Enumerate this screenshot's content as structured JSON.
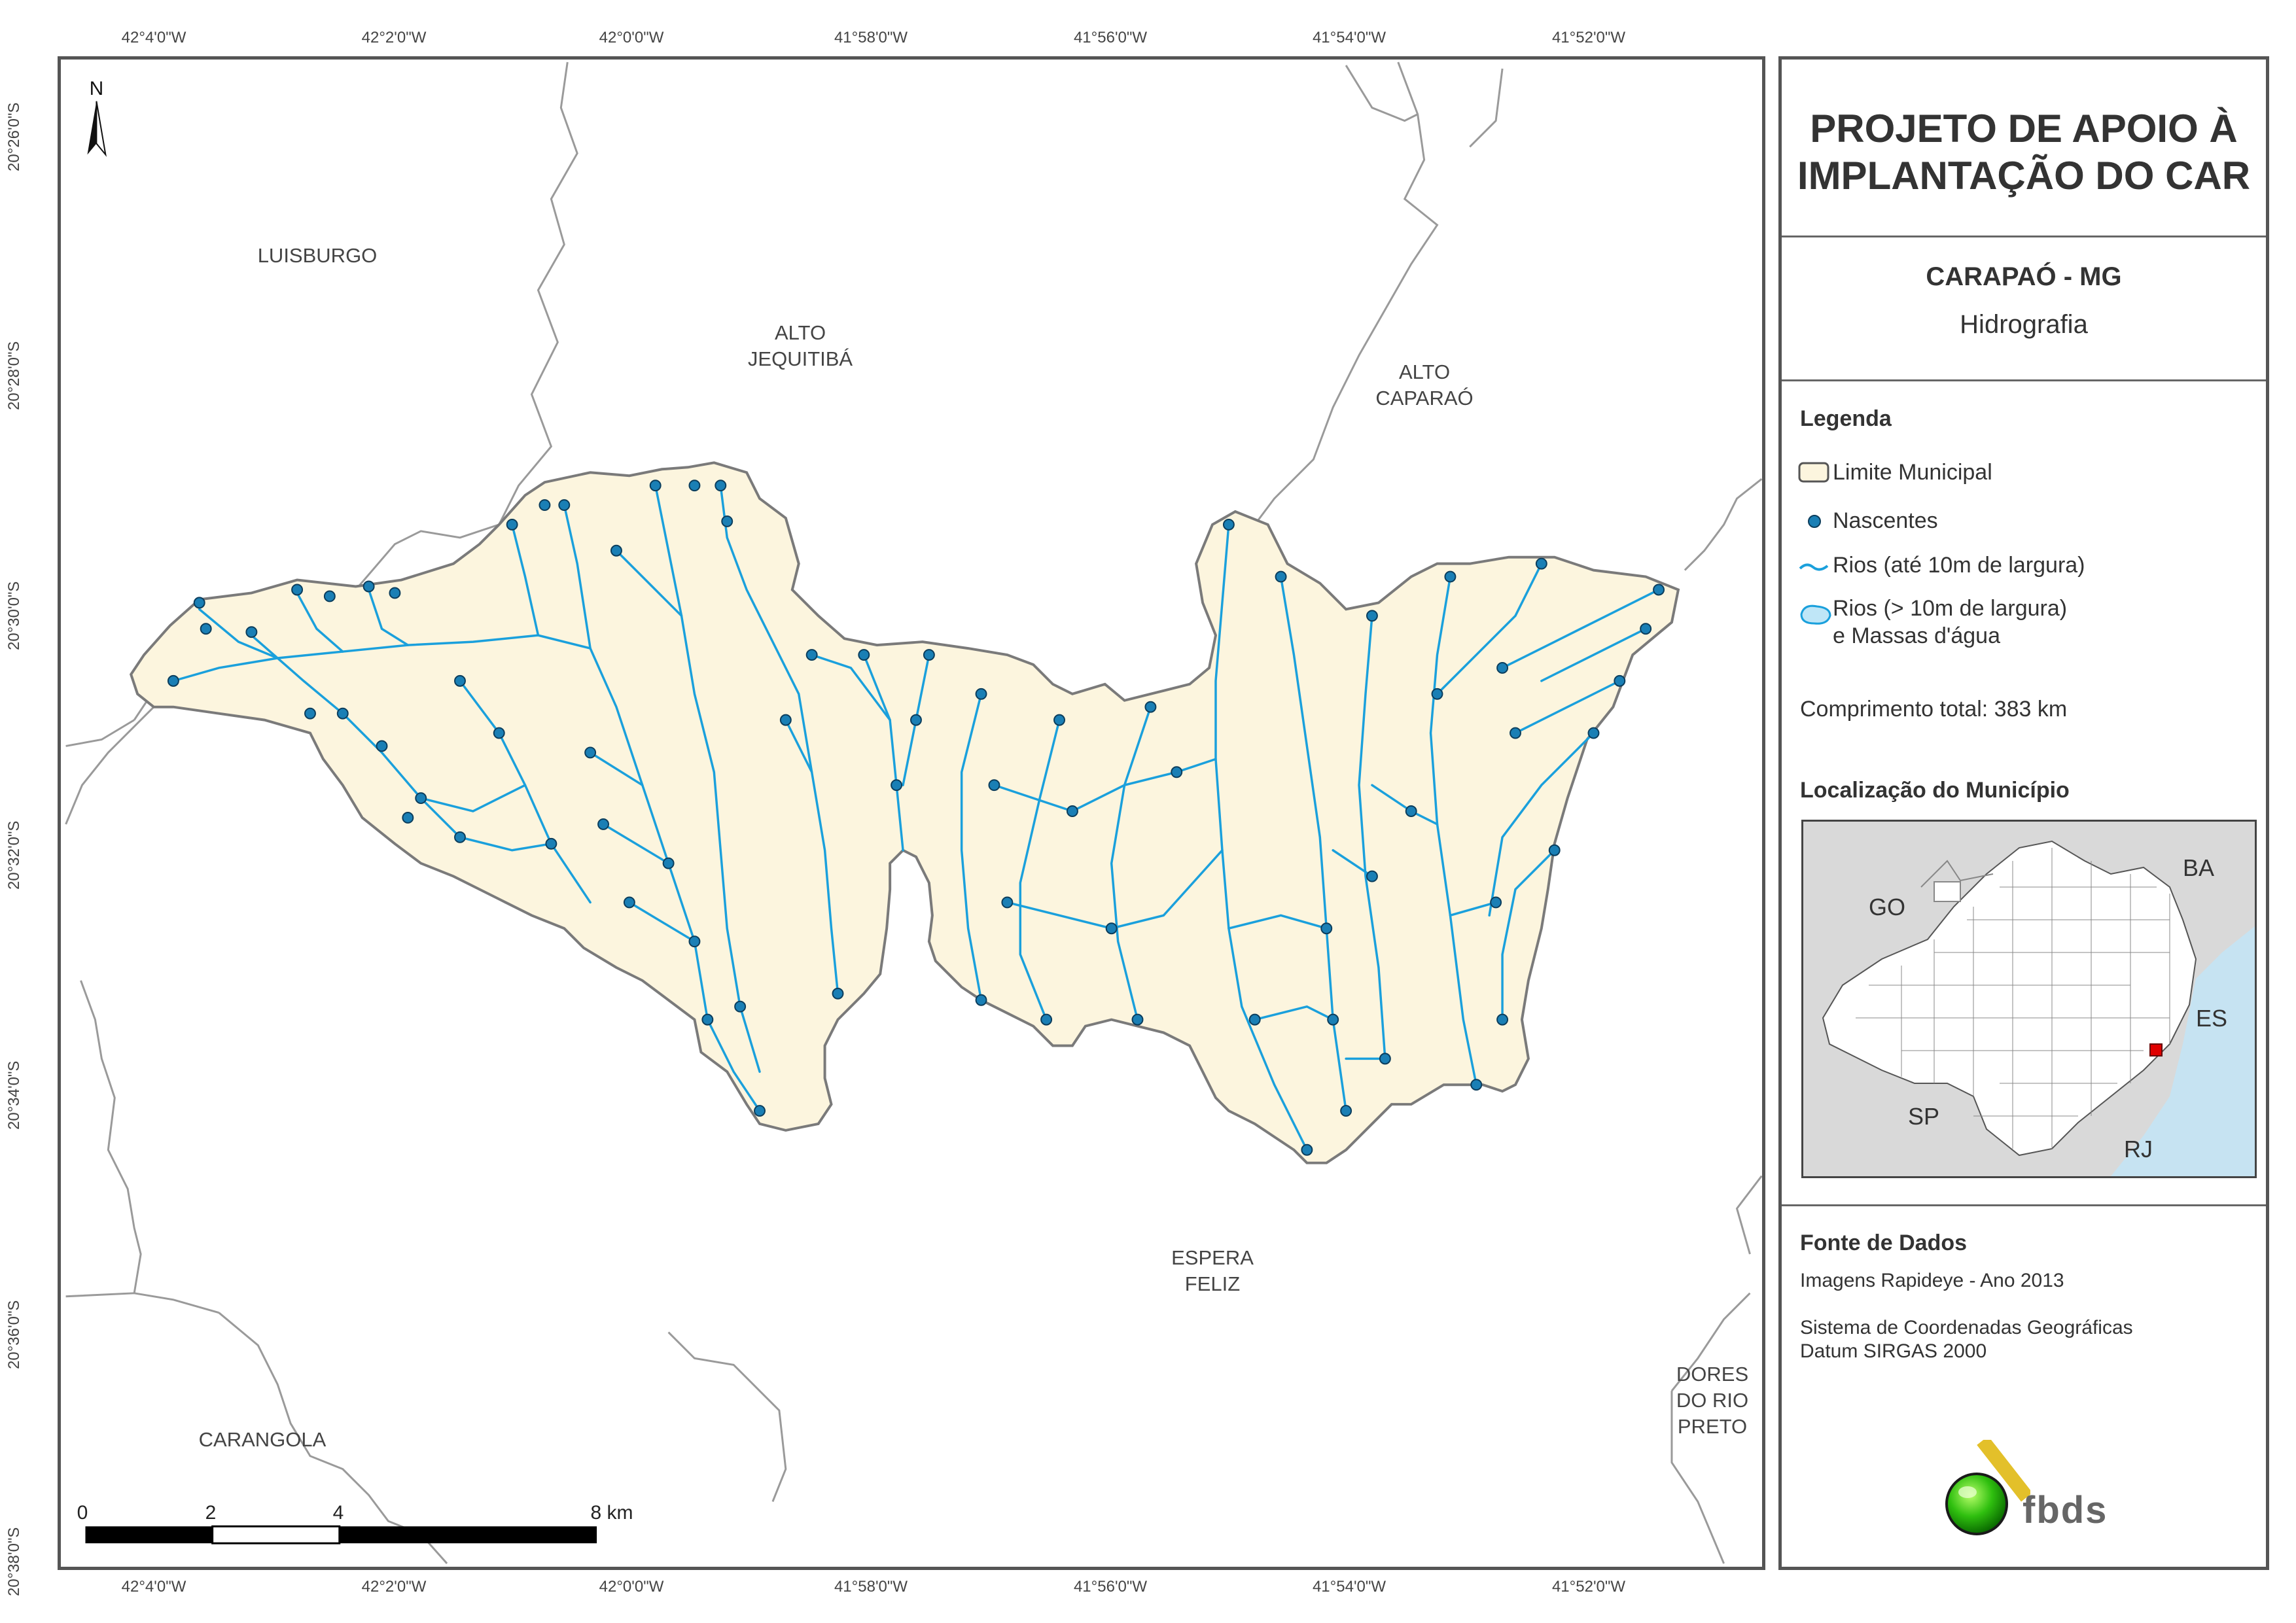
{
  "map": {
    "coords_top": [
      "42°4'0\"W",
      "42°2'0\"W",
      "42°0'0\"W",
      "41°58'0\"W",
      "41°56'0\"W",
      "41°54'0\"W",
      "41°52'0\"W"
    ],
    "coords_bottom": [
      "42°4'0\"W",
      "42°2'0\"W",
      "42°0'0\"W",
      "41°58'0\"W",
      "41°56'0\"W",
      "41°54'0\"W",
      "41°52'0\"W"
    ],
    "coords_left": [
      "20°26'0\"S",
      "20°28'0\"S",
      "20°30'0\"S",
      "20°32'0\"S",
      "20°34'0\"S",
      "20°36'0\"S",
      "20°38'0\"S"
    ],
    "north": "N",
    "towns": {
      "luisburgo": "LUISBURGO",
      "alto_jequitiba_1": "ALTO",
      "alto_jequitiba_2": "JEQUITIBÁ",
      "alto_caparao_1": "ALTO",
      "alto_caparao_2": "CAPARAÓ",
      "espera_feliz_1": "ESPERA",
      "espera_feliz_2": "FELIZ",
      "carangola": "CARANGOLA",
      "dores_1": "DORES",
      "dores_2": "DO RIO",
      "dores_3": "PRETO"
    },
    "scale": {
      "labels": [
        "0",
        "2",
        "4",
        "8 km"
      ]
    },
    "colors": {
      "municipio_fill": "#fcf5de",
      "municipio_border": "#7a7a7a",
      "rios": "#1aa0dc",
      "nascentes": "#1a7fb5",
      "limites": "#9a9a9a"
    }
  },
  "panel": {
    "title_line1": "PROJETO DE APOIO À",
    "title_line2": "IMPLANTAÇÃO DO CAR",
    "municipio": "CARAPAÓ - MG",
    "tema": "Hidrografia",
    "legend": {
      "heading": "Legenda",
      "limite": "Limite Municipal",
      "nascentes": "Nascentes",
      "rios_small": "Rios (até 10m de largura)",
      "rios_big_1": "Rios (> 10m de largura)",
      "rios_big_2": "e Massas d'água",
      "comprimento": "Comprimento total:  383 km"
    },
    "localizacao": {
      "heading": "Localização do Município",
      "labels": [
        "GO",
        "BA",
        "ES",
        "SP",
        "RJ"
      ]
    },
    "fonte": {
      "heading": "Fonte de Dados",
      "line1": "Imagens Rapideye - Ano 2013",
      "line2": "Sistema de Coordenadas Geográficas",
      "line3": "Datum SIRGAS 2000"
    },
    "logo_text": "fbds"
  }
}
